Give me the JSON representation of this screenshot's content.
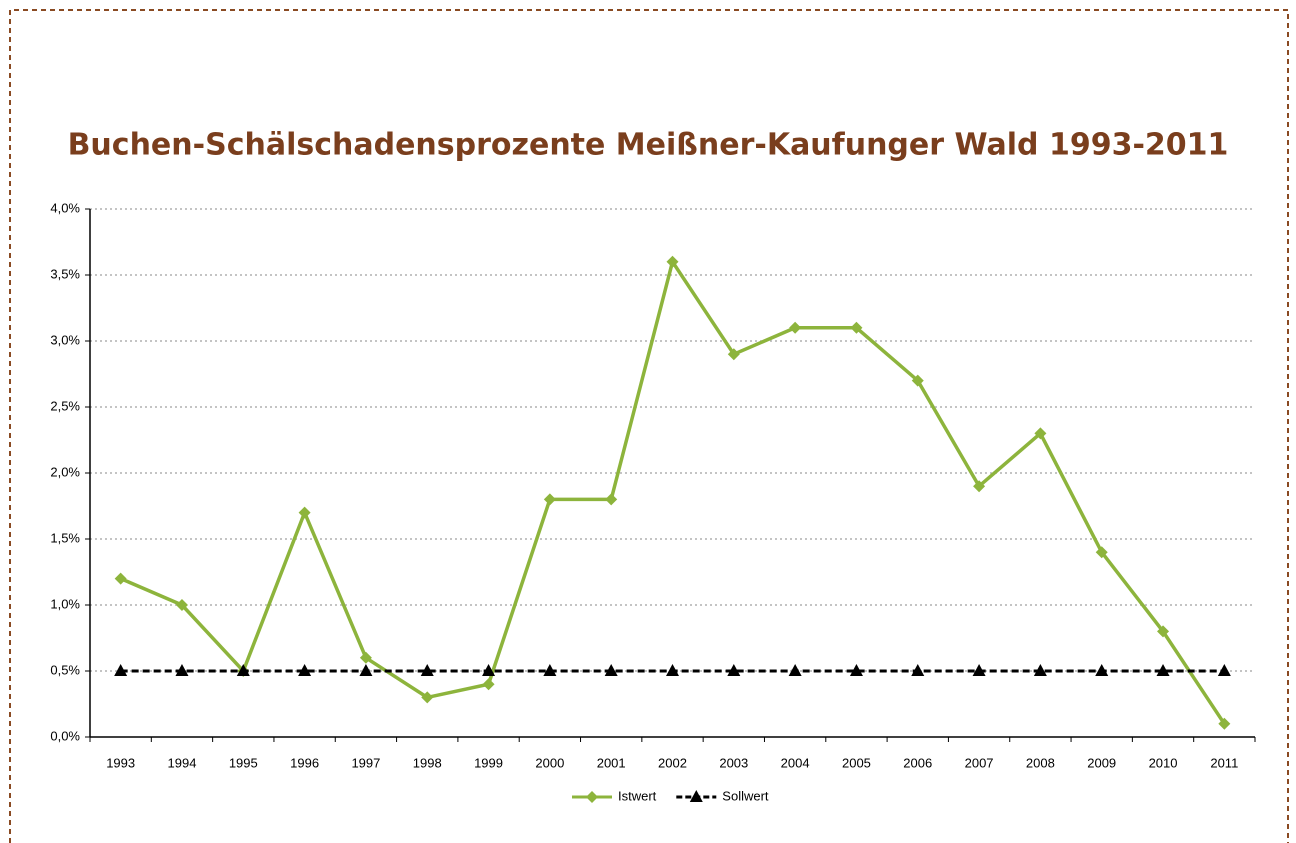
{
  "chart_data": {
    "type": "line",
    "title": "Buchen-Schälschadensprozente Meißner-Kaufunger Wald 1993-2011",
    "categories": [
      "1993",
      "1994",
      "1995",
      "1996",
      "1997",
      "1998",
      "1999",
      "2000",
      "2001",
      "2002",
      "2003",
      "2004",
      "2005",
      "2006",
      "2007",
      "2008",
      "2009",
      "2010",
      "2011"
    ],
    "series": [
      {
        "name": "Istwert",
        "color": "#8db43c",
        "marker": "diamond",
        "dashed": false,
        "values": [
          1.2,
          1.0,
          0.5,
          1.7,
          0.6,
          0.3,
          0.4,
          1.8,
          1.8,
          3.6,
          2.9,
          3.1,
          3.1,
          2.7,
          1.9,
          2.3,
          1.4,
          0.8,
          0.1
        ]
      },
      {
        "name": "Sollwert",
        "color": "#000000",
        "marker": "triangle",
        "dashed": true,
        "values": [
          0.5,
          0.5,
          0.5,
          0.5,
          0.5,
          0.5,
          0.5,
          0.5,
          0.5,
          0.5,
          0.5,
          0.5,
          0.5,
          0.5,
          0.5,
          0.5,
          0.5,
          0.5,
          0.5
        ]
      }
    ],
    "ylim": [
      0,
      4
    ],
    "yticks": [
      {
        "value": 0,
        "label": "0,0%"
      },
      {
        "value": 0.5,
        "label": "0,5%"
      },
      {
        "value": 1,
        "label": "1,0%"
      },
      {
        "value": 1.5,
        "label": "1,5%"
      },
      {
        "value": 2,
        "label": "2,0%"
      },
      {
        "value": 2.5,
        "label": "2,5%"
      },
      {
        "value": 3,
        "label": "3,0%"
      },
      {
        "value": 3.5,
        "label": "3,5%"
      },
      {
        "value": 4,
        "label": "4,0%"
      }
    ],
    "grid": true,
    "legend": "bottom"
  }
}
